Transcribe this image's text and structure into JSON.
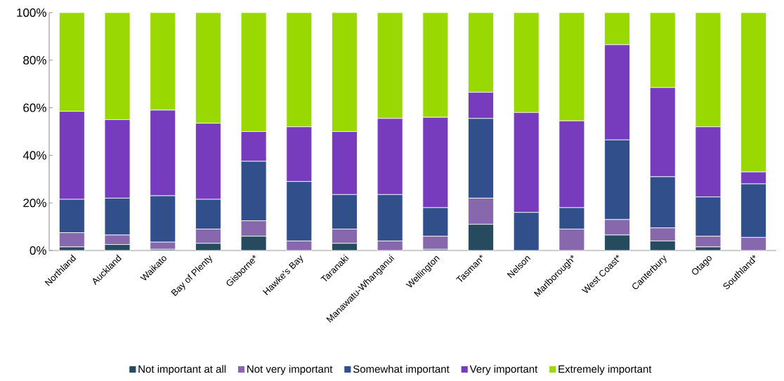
{
  "chart_data": {
    "type": "bar",
    "stacked": true,
    "legend": "bottom",
    "categories": [
      "Northland",
      "Auckland",
      "Waikato",
      "Bay of Plenty",
      "Gisborne*",
      "Hawke's Bay",
      "Taranaki",
      "Manawatu-Whanganui",
      "Wellington",
      "Tasman*",
      "Nelson",
      "Marlborough*",
      "West Coast*",
      "Canterbury",
      "Otago",
      "Southland*"
    ],
    "ylim": [
      0,
      100
    ],
    "yticks": [
      {
        "value": 0,
        "label": "0%"
      },
      {
        "value": 20,
        "label": "20%"
      },
      {
        "value": 40,
        "label": "40%"
      },
      {
        "value": 60,
        "label": "60%"
      },
      {
        "value": 80,
        "label": "80%"
      },
      {
        "value": 100,
        "label": "100%"
      }
    ],
    "series": [
      {
        "name": "Not important at all",
        "color": "#264a5e",
        "values": [
          1.5,
          2.5,
          0.5,
          3,
          6,
          0,
          3,
          0,
          0.5,
          11,
          0,
          0,
          6.5,
          4,
          1.5,
          0
        ]
      },
      {
        "name": "Not very important",
        "color": "#8868ad",
        "values": [
          6,
          4,
          3,
          6,
          6.5,
          4,
          6,
          4,
          5.5,
          11,
          0,
          9,
          6.5,
          5.5,
          4.5,
          5.5
        ]
      },
      {
        "name": "Somewhat important",
        "color": "#31508b",
        "values": [
          14,
          15.5,
          19.5,
          12.5,
          25,
          25,
          14.5,
          19.5,
          12,
          33.5,
          16,
          9,
          33.5,
          21.5,
          16.5,
          22.5
        ]
      },
      {
        "name": "Very important",
        "color": "#773bbd",
        "values": [
          37,
          33,
          36,
          32,
          12.5,
          23,
          26.5,
          32,
          38,
          11,
          42,
          36.5,
          40,
          37.5,
          29.5,
          5
        ]
      },
      {
        "name": "Extremely important",
        "color": "#99d800",
        "values": [
          41.5,
          45,
          41,
          46.5,
          50,
          48,
          50,
          44.5,
          44,
          33.5,
          42,
          45.5,
          13.5,
          31.5,
          48,
          67
        ]
      }
    ]
  }
}
